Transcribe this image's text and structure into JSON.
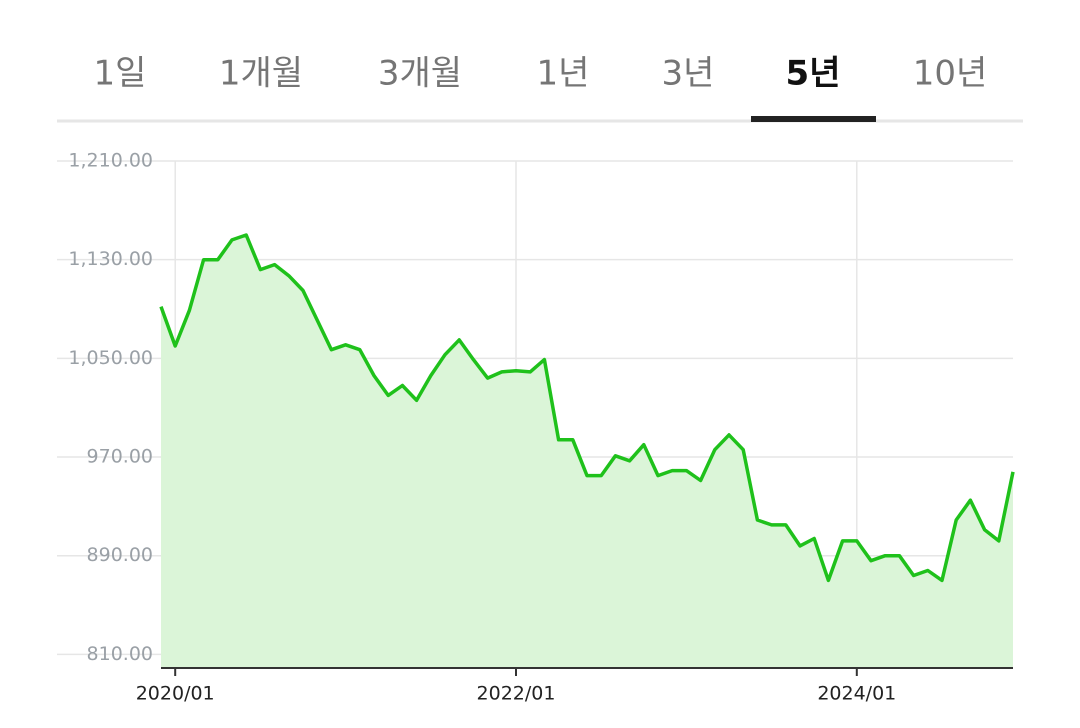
{
  "tabs": [
    "1일",
    "1개월",
    "3개월",
    "1년",
    "3년",
    "5년",
    "10년"
  ],
  "selected_tab": 5,
  "chart_data": {
    "type": "area",
    "x": [
      "2019/12",
      "2020/01",
      "2020/02",
      "2020/03",
      "2020/04",
      "2020/05",
      "2020/06",
      "2020/07",
      "2020/08",
      "2020/09",
      "2020/10",
      "2020/11",
      "2020/12",
      "2021/01",
      "2021/02",
      "2021/03",
      "2021/04",
      "2021/05",
      "2021/06",
      "2021/07",
      "2021/08",
      "2021/09",
      "2021/10",
      "2021/11",
      "2021/12",
      "2022/01",
      "2022/02",
      "2022/03",
      "2022/04",
      "2022/05",
      "2022/06",
      "2022/07",
      "2022/08",
      "2022/09",
      "2022/10",
      "2022/11",
      "2022/12",
      "2023/01",
      "2023/02",
      "2023/03",
      "2023/04",
      "2023/05",
      "2023/06",
      "2023/07",
      "2023/08",
      "2023/09",
      "2023/10",
      "2023/11",
      "2023/12",
      "2024/01",
      "2024/02",
      "2024/03",
      "2024/04",
      "2024/05",
      "2024/06",
      "2024/07",
      "2024/08",
      "2024/09",
      "2024/10",
      "2024/11",
      "2024/12"
    ],
    "series": [
      {
        "color": "#1fc11b",
        "fill": "#dbf5d8",
        "values": [
          1092,
          1060,
          1089,
          1130,
          1130,
          1146,
          1150,
          1122,
          1126,
          1117,
          1105,
          1081,
          1057,
          1061,
          1057,
          1036,
          1020,
          1028,
          1016,
          1036,
          1053,
          1065,
          1049,
          1034,
          1039,
          1040,
          1039,
          1049,
          984,
          984,
          955,
          955,
          971,
          967,
          980,
          955,
          959,
          959,
          951,
          976,
          988,
          976,
          919,
          915,
          915,
          898,
          904,
          870,
          902,
          902,
          886,
          890,
          890,
          874,
          878,
          870,
          919,
          935,
          911,
          902,
          958
        ]
      }
    ],
    "xticks": [
      "2020/01",
      "2022/01",
      "2024/01"
    ],
    "ylim": [
      799,
      1210
    ],
    "yticks": [
      {
        "value": 1210,
        "label": "1,210.00"
      },
      {
        "value": 1130,
        "label": "1,130.00"
      },
      {
        "value": 1050,
        "label": "1,050.00"
      },
      {
        "value": 970,
        "label": "970.00"
      },
      {
        "value": 890,
        "label": "890.00"
      },
      {
        "value": 810,
        "label": "810.00"
      }
    ],
    "grid": true
  }
}
